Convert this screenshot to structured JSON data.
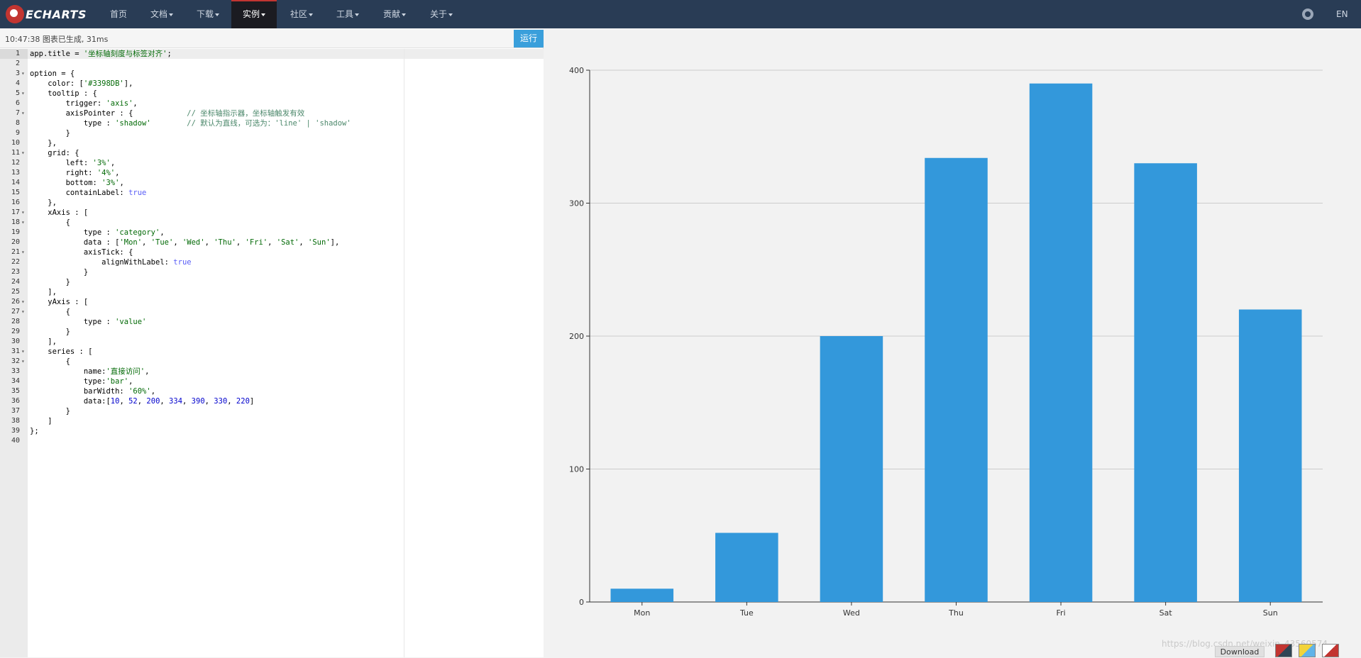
{
  "navbar": {
    "brand": "ECHARTS",
    "items": [
      {
        "label": "首页",
        "dropdown": false
      },
      {
        "label": "文档",
        "dropdown": true
      },
      {
        "label": "下载",
        "dropdown": true
      },
      {
        "label": "实例",
        "dropdown": true,
        "active": true
      },
      {
        "label": "社区",
        "dropdown": true
      },
      {
        "label": "工具",
        "dropdown": true
      },
      {
        "label": "贡献",
        "dropdown": true
      },
      {
        "label": "关于",
        "dropdown": true
      }
    ],
    "lang": "EN",
    "github_icon": "github-icon"
  },
  "editor": {
    "status": "10:47:38  图表已生成, 31ms",
    "run_label": "运行",
    "lines": [
      [
        [
          "kw",
          "app.title = "
        ],
        [
          "str2",
          "'坐标轴刻度与标签对齐'"
        ],
        [
          "kw",
          ";"
        ]
      ],
      [],
      [
        [
          "kw",
          "option = {"
        ]
      ],
      [
        [
          "kw",
          "    color: ["
        ],
        [
          "str2",
          "'#3398DB'"
        ],
        [
          "kw",
          "],"
        ]
      ],
      [
        [
          "kw",
          "    tooltip : {"
        ]
      ],
      [
        [
          "kw",
          "        trigger: "
        ],
        [
          "str2",
          "'axis'"
        ],
        [
          "kw",
          ","
        ]
      ],
      [
        [
          "kw",
          "        axisPointer : {            "
        ],
        [
          "cmt",
          "// 坐标轴指示器，坐标轴触发有效"
        ]
      ],
      [
        [
          "kw",
          "            type : "
        ],
        [
          "str2",
          "'shadow'"
        ],
        [
          "kw",
          "        "
        ],
        [
          "cmt",
          "// 默认为直线，可选为：'line' | 'shadow'"
        ]
      ],
      [
        [
          "kw",
          "        }"
        ]
      ],
      [
        [
          "kw",
          "    },"
        ]
      ],
      [
        [
          "kw",
          "    grid: {"
        ]
      ],
      [
        [
          "kw",
          "        left: "
        ],
        [
          "str2",
          "'3%'"
        ],
        [
          "kw",
          ","
        ]
      ],
      [
        [
          "kw",
          "        right: "
        ],
        [
          "str2",
          "'4%'"
        ],
        [
          "kw",
          ","
        ]
      ],
      [
        [
          "kw",
          "        bottom: "
        ],
        [
          "str2",
          "'3%'"
        ],
        [
          "kw",
          ","
        ]
      ],
      [
        [
          "kw",
          "        containLabel: "
        ],
        [
          "bool",
          "true"
        ]
      ],
      [
        [
          "kw",
          "    },"
        ]
      ],
      [
        [
          "kw",
          "    xAxis : ["
        ]
      ],
      [
        [
          "kw",
          "        {"
        ]
      ],
      [
        [
          "kw",
          "            type : "
        ],
        [
          "str2",
          "'category'"
        ],
        [
          "kw",
          ","
        ]
      ],
      [
        [
          "kw",
          "            data : ["
        ],
        [
          "str2",
          "'Mon'"
        ],
        [
          "kw",
          ", "
        ],
        [
          "str2",
          "'Tue'"
        ],
        [
          "kw",
          ", "
        ],
        [
          "str2",
          "'Wed'"
        ],
        [
          "kw",
          ", "
        ],
        [
          "str2",
          "'Thu'"
        ],
        [
          "kw",
          ", "
        ],
        [
          "str2",
          "'Fri'"
        ],
        [
          "kw",
          ", "
        ],
        [
          "str2",
          "'Sat'"
        ],
        [
          "kw",
          ", "
        ],
        [
          "str2",
          "'Sun'"
        ],
        [
          "kw",
          "],"
        ]
      ],
      [
        [
          "kw",
          "            axisTick: {"
        ]
      ],
      [
        [
          "kw",
          "                alignWithLabel: "
        ],
        [
          "bool",
          "true"
        ]
      ],
      [
        [
          "kw",
          "            }"
        ]
      ],
      [
        [
          "kw",
          "        }"
        ]
      ],
      [
        [
          "kw",
          "    ],"
        ]
      ],
      [
        [
          "kw",
          "    yAxis : ["
        ]
      ],
      [
        [
          "kw",
          "        {"
        ]
      ],
      [
        [
          "kw",
          "            type : "
        ],
        [
          "str2",
          "'value'"
        ]
      ],
      [
        [
          "kw",
          "        }"
        ]
      ],
      [
        [
          "kw",
          "    ],"
        ]
      ],
      [
        [
          "kw",
          "    series : ["
        ]
      ],
      [
        [
          "kw",
          "        {"
        ]
      ],
      [
        [
          "kw",
          "            name:"
        ],
        [
          "str2",
          "'直接访问'"
        ],
        [
          "kw",
          ","
        ]
      ],
      [
        [
          "kw",
          "            type:"
        ],
        [
          "str2",
          "'bar'"
        ],
        [
          "kw",
          ","
        ]
      ],
      [
        [
          "kw",
          "            barWidth: "
        ],
        [
          "str2",
          "'60%'"
        ],
        [
          "kw",
          ","
        ]
      ],
      [
        [
          "kw",
          "            data:["
        ],
        [
          "num",
          "10"
        ],
        [
          "kw",
          ", "
        ],
        [
          "num",
          "52"
        ],
        [
          "kw",
          ", "
        ],
        [
          "num",
          "200"
        ],
        [
          "kw",
          ", "
        ],
        [
          "num",
          "334"
        ],
        [
          "kw",
          ", "
        ],
        [
          "num",
          "390"
        ],
        [
          "kw",
          ", "
        ],
        [
          "num",
          "330"
        ],
        [
          "kw",
          ", "
        ],
        [
          "num",
          "220"
        ],
        [
          "kw",
          "]"
        ]
      ],
      [
        [
          "kw",
          "        }"
        ]
      ],
      [
        [
          "kw",
          "    ]"
        ]
      ],
      [
        [
          "kw",
          "};"
        ]
      ],
      []
    ],
    "fold_lines": [
      3,
      5,
      7,
      11,
      17,
      18,
      21,
      26,
      27,
      31,
      32
    ]
  },
  "chart_data": {
    "type": "bar",
    "categories": [
      "Mon",
      "Tue",
      "Wed",
      "Thu",
      "Fri",
      "Sat",
      "Sun"
    ],
    "series": [
      {
        "values": [
          10,
          52,
          200,
          334,
          390,
          330,
          220
        ]
      }
    ],
    "yticks": [
      0,
      100,
      200,
      300,
      400
    ],
    "ylim": [
      0,
      400
    ],
    "color": "#3398DB",
    "grid": true
  },
  "footer": {
    "watermark": "https://blog.csdn.net/weixin_43560574",
    "download_label": "Download"
  }
}
